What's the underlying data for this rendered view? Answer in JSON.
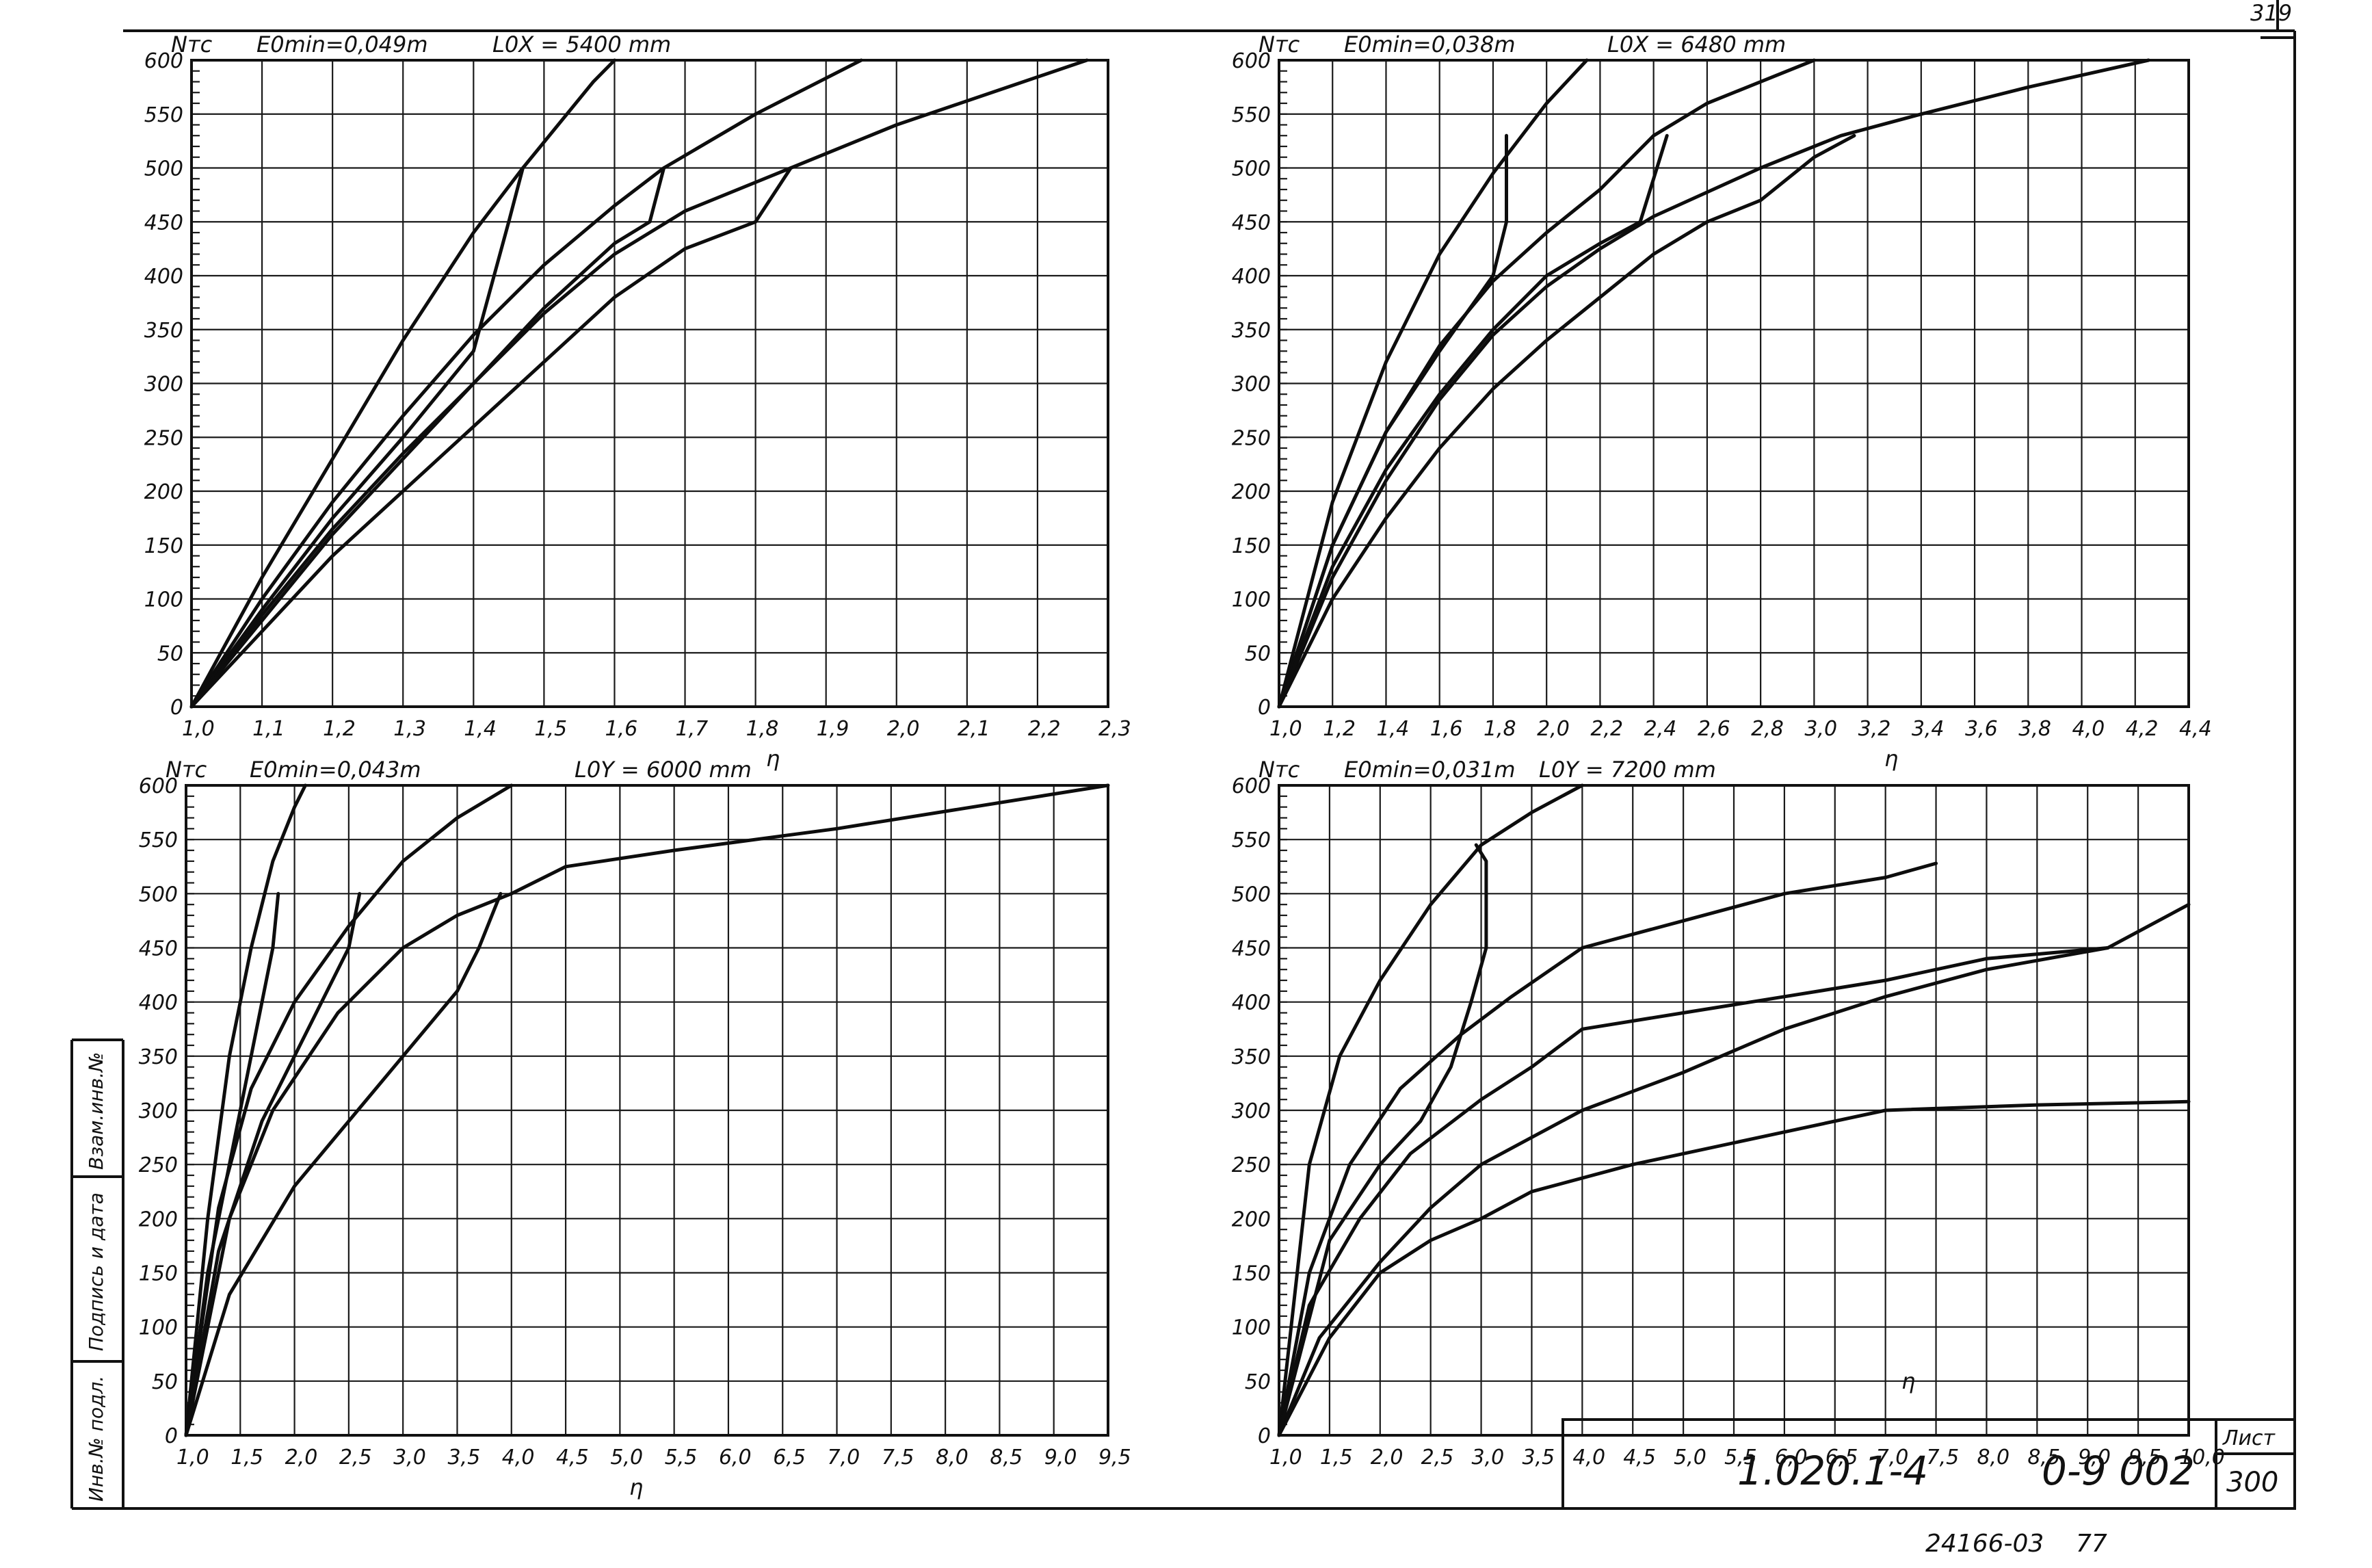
{
  "sheet": {
    "designation": "1.020.1-4",
    "code": "0-9 002",
    "list_label": "Лист",
    "list_number": "300",
    "corner_number": "319",
    "footer_number": "24166-03",
    "footer_extra": "77",
    "side_stamp": {
      "inv_podl": "Инв.№ подл.",
      "podpis_data": "Подпись и дата",
      "vzam_inv": "Взам.инв.№"
    }
  },
  "chart_data": [
    {
      "type": "line",
      "ylabel": "Nтс",
      "xlabel": "η",
      "e0min": "E0min=0,049m",
      "l0": "L0X = 5400 mm",
      "xlim": [
        1.0,
        2.3
      ],
      "ylim": [
        0,
        600
      ],
      "x_ticks": [
        "1,0",
        "1,1",
        "1,2",
        "1,3",
        "1,4",
        "1,5",
        "1,6",
        "1,7",
        "1,8",
        "1,9",
        "2,0",
        "2,1",
        "2,2",
        "2,3"
      ],
      "y_ticks": [
        "0",
        "50",
        "100",
        "150",
        "200",
        "250",
        "300",
        "350",
        "400",
        "450",
        "500",
        "550",
        "600"
      ],
      "series": [
        {
          "points": [
            [
              1.0,
              0
            ],
            [
              1.05,
              60
            ],
            [
              1.1,
              120
            ],
            [
              1.2,
              230
            ],
            [
              1.3,
              340
            ],
            [
              1.4,
              440
            ],
            [
              1.47,
              500
            ],
            [
              1.57,
              580
            ],
            [
              1.6,
              600
            ]
          ]
        },
        {
          "points": [
            [
              1.0,
              0
            ],
            [
              1.1,
              100
            ],
            [
              1.2,
              190
            ],
            [
              1.3,
              270
            ],
            [
              1.4,
              345
            ],
            [
              1.5,
              410
            ],
            [
              1.6,
              465
            ],
            [
              1.67,
              500
            ],
            [
              1.8,
              550
            ],
            [
              1.95,
              600
            ]
          ]
        },
        {
          "points": [
            [
              1.0,
              0
            ],
            [
              1.1,
              85
            ],
            [
              1.2,
              165
            ],
            [
              1.3,
              235
            ],
            [
              1.4,
              300
            ],
            [
              1.5,
              365
            ],
            [
              1.6,
              420
            ],
            [
              1.7,
              460
            ],
            [
              1.85,
              500
            ],
            [
              2.0,
              540
            ],
            [
              2.27,
              600
            ]
          ]
        },
        {
          "points": [
            [
              1.0,
              0
            ],
            [
              1.1,
              70
            ],
            [
              1.2,
              140
            ],
            [
              1.3,
              200
            ],
            [
              1.4,
              260
            ],
            [
              1.5,
              320
            ],
            [
              1.6,
              380
            ],
            [
              1.7,
              425
            ],
            [
              1.8,
              450
            ],
            [
              1.85,
              500
            ]
          ]
        },
        {
          "points": [
            [
              1.0,
              0
            ],
            [
              1.1,
              90
            ],
            [
              1.2,
              175
            ],
            [
              1.3,
              250
            ],
            [
              1.4,
              330
            ],
            [
              1.45,
              450
            ],
            [
              1.47,
              500
            ]
          ]
        },
        {
          "points": [
            [
              1.0,
              0
            ],
            [
              1.1,
              80
            ],
            [
              1.2,
              160
            ],
            [
              1.3,
              230
            ],
            [
              1.4,
              300
            ],
            [
              1.5,
              370
            ],
            [
              1.6,
              430
            ],
            [
              1.65,
              450
            ],
            [
              1.67,
              500
            ]
          ]
        }
      ]
    },
    {
      "type": "line",
      "ylabel": "Nтс",
      "xlabel": "η",
      "e0min": "E0min=0,038m",
      "l0": "L0X = 6480 mm",
      "xlim": [
        1.0,
        4.4
      ],
      "ylim": [
        0,
        600
      ],
      "x_ticks": [
        "1,0",
        "1,2",
        "1,4",
        "1,6",
        "1,8",
        "2,0",
        "2,2",
        "2,4",
        "2,6",
        "2,8",
        "3,0",
        "3,2",
        "3,4",
        "3,6",
        "3,8",
        "4,0",
        "4,2",
        "4,4"
      ],
      "y_ticks": [
        "0",
        "50",
        "100",
        "150",
        "200",
        "250",
        "300",
        "350",
        "400",
        "450",
        "500",
        "550",
        "600"
      ],
      "series": [
        {
          "points": [
            [
              1.0,
              0
            ],
            [
              1.2,
              190
            ],
            [
              1.4,
              320
            ],
            [
              1.6,
              420
            ],
            [
              1.8,
              495
            ],
            [
              2.0,
              560
            ],
            [
              2.15,
              600
            ]
          ]
        },
        {
          "points": [
            [
              1.0,
              0
            ],
            [
              1.2,
              150
            ],
            [
              1.4,
              255
            ],
            [
              1.6,
              335
            ],
            [
              1.8,
              395
            ],
            [
              2.0,
              440
            ],
            [
              2.2,
              480
            ],
            [
              2.4,
              530
            ],
            [
              2.6,
              560
            ],
            [
              3.0,
              600
            ]
          ]
        },
        {
          "points": [
            [
              1.0,
              0
            ],
            [
              1.2,
              120
            ],
            [
              1.4,
              210
            ],
            [
              1.6,
              285
            ],
            [
              1.8,
              345
            ],
            [
              2.0,
              390
            ],
            [
              2.2,
              425
            ],
            [
              2.4,
              455
            ],
            [
              2.8,
              500
            ],
            [
              3.1,
              530
            ],
            [
              3.4,
              550
            ],
            [
              3.8,
              575
            ],
            [
              4.25,
              600
            ]
          ]
        },
        {
          "points": [
            [
              1.0,
              0
            ],
            [
              1.2,
              100
            ],
            [
              1.4,
              175
            ],
            [
              1.6,
              240
            ],
            [
              1.8,
              295
            ],
            [
              2.0,
              340
            ],
            [
              2.2,
              380
            ],
            [
              2.4,
              420
            ],
            [
              2.6,
              450
            ],
            [
              2.8,
              470
            ],
            [
              3.0,
              510
            ],
            [
              3.15,
              530
            ]
          ]
        },
        {
          "points": [
            [
              1.0,
              0
            ],
            [
              1.2,
              150
            ],
            [
              1.4,
              255
            ],
            [
              1.6,
              330
            ],
            [
              1.8,
              400
            ],
            [
              1.85,
              450
            ],
            [
              1.85,
              530
            ]
          ]
        },
        {
          "points": [
            [
              1.0,
              0
            ],
            [
              1.2,
              130
            ],
            [
              1.4,
              220
            ],
            [
              1.6,
              290
            ],
            [
              1.8,
              350
            ],
            [
              2.0,
              400
            ],
            [
              2.2,
              430
            ],
            [
              2.35,
              450
            ],
            [
              2.45,
              530
            ]
          ]
        }
      ]
    },
    {
      "type": "line",
      "ylabel": "Nтс",
      "xlabel": "η",
      "e0min": "E0min=0,043m",
      "l0": "L0Y = 6000 mm",
      "xlim": [
        1.0,
        9.5
      ],
      "ylim": [
        0,
        600
      ],
      "x_ticks": [
        "1,0",
        "1,5",
        "2,0",
        "2,5",
        "3,0",
        "3,5",
        "4,0",
        "4,5",
        "5,0",
        "5,5",
        "6,0",
        "6,5",
        "7,0",
        "7,5",
        "8,0",
        "8,5",
        "9,0",
        "9,5"
      ],
      "y_ticks": [
        "0",
        "50",
        "100",
        "150",
        "200",
        "250",
        "300",
        "350",
        "400",
        "450",
        "500",
        "550",
        "600"
      ],
      "series": [
        {
          "points": [
            [
              1.0,
              0
            ],
            [
              1.2,
              200
            ],
            [
              1.4,
              350
            ],
            [
              1.6,
              450
            ],
            [
              1.8,
              530
            ],
            [
              2.0,
              580
            ],
            [
              2.1,
              600
            ]
          ]
        },
        {
          "points": [
            [
              1.0,
              0
            ],
            [
              1.3,
              210
            ],
            [
              1.6,
              320
            ],
            [
              2.0,
              400
            ],
            [
              2.5,
              470
            ],
            [
              3.0,
              530
            ],
            [
              3.5,
              570
            ],
            [
              4.0,
              600
            ]
          ]
        },
        {
          "points": [
            [
              1.0,
              0
            ],
            [
              1.4,
              200
            ],
            [
              1.8,
              300
            ],
            [
              2.4,
              390
            ],
            [
              3.0,
              450
            ],
            [
              3.5,
              480
            ],
            [
              4.0,
              500
            ],
            [
              4.5,
              525
            ],
            [
              5.5,
              540
            ],
            [
              7.0,
              560
            ],
            [
              9.5,
              600
            ]
          ]
        },
        {
          "points": [
            [
              1.0,
              0
            ],
            [
              1.4,
              130
            ],
            [
              2.0,
              230
            ],
            [
              2.5,
              290
            ],
            [
              3.0,
              350
            ],
            [
              3.5,
              410
            ],
            [
              3.7,
              450
            ],
            [
              3.9,
              500
            ]
          ]
        },
        {
          "points": [
            [
              1.0,
              0
            ],
            [
              1.2,
              150
            ],
            [
              1.5,
              300
            ],
            [
              1.8,
              450
            ],
            [
              1.85,
              500
            ]
          ]
        },
        {
          "points": [
            [
              1.0,
              0
            ],
            [
              1.3,
              170
            ],
            [
              1.7,
              290
            ],
            [
              2.1,
              370
            ],
            [
              2.5,
              450
            ],
            [
              2.6,
              500
            ]
          ]
        }
      ]
    },
    {
      "type": "line",
      "ylabel": "Nтс",
      "xlabel": "η",
      "e0min": "E0min=0,031m",
      "l0": "L0Y = 7200 mm",
      "xlim": [
        1.0,
        10.0
      ],
      "ylim": [
        0,
        600
      ],
      "x_ticks": [
        "1,0",
        "1,5",
        "2,0",
        "2,5",
        "3,0",
        "3,5",
        "4,0",
        "4,5",
        "5,0",
        "5,5",
        "6,0",
        "6,5",
        "7,0",
        "7,5",
        "8,0",
        "8,5",
        "9,0",
        "9,5",
        "10,0"
      ],
      "y_ticks": [
        "0",
        "50",
        "100",
        "150",
        "200",
        "250",
        "300",
        "350",
        "400",
        "450",
        "500",
        "550",
        "600"
      ],
      "series": [
        {
          "points": [
            [
              1.0,
              0
            ],
            [
              1.3,
              250
            ],
            [
              1.6,
              350
            ],
            [
              2.0,
              420
            ],
            [
              2.5,
              490
            ],
            [
              3.0,
              545
            ],
            [
              3.5,
              575
            ],
            [
              4.0,
              600
            ]
          ]
        },
        {
          "points": [
            [
              1.0,
              0
            ],
            [
              1.3,
              150
            ],
            [
              1.7,
              250
            ],
            [
              2.2,
              320
            ],
            [
              2.8,
              370
            ],
            [
              3.3,
              405
            ],
            [
              4.0,
              450
            ],
            [
              5.0,
              475
            ],
            [
              6.0,
              500
            ],
            [
              7.0,
              515
            ],
            [
              7.5,
              528
            ]
          ]
        },
        {
          "points": [
            [
              1.0,
              0
            ],
            [
              1.3,
              120
            ],
            [
              1.8,
              200
            ],
            [
              2.3,
              260
            ],
            [
              3.0,
              310
            ],
            [
              3.5,
              340
            ],
            [
              4.0,
              375
            ],
            [
              5.0,
              390
            ],
            [
              6.0,
              405
            ],
            [
              7.0,
              420
            ],
            [
              8.0,
              440
            ],
            [
              9.2,
              450
            ],
            [
              10.0,
              490
            ]
          ]
        },
        {
          "points": [
            [
              1.0,
              0
            ],
            [
              1.4,
              90
            ],
            [
              2.0,
              160
            ],
            [
              2.5,
              210
            ],
            [
              3.0,
              250
            ],
            [
              3.5,
              275
            ],
            [
              4.0,
              300
            ],
            [
              5.0,
              335
            ],
            [
              6.0,
              375
            ],
            [
              7.0,
              405
            ],
            [
              8.0,
              430
            ],
            [
              9.2,
              450
            ]
          ]
        },
        {
          "points": [
            [
              1.0,
              0
            ],
            [
              1.5,
              90
            ],
            [
              2.0,
              150
            ],
            [
              2.5,
              180
            ],
            [
              3.0,
              200
            ],
            [
              3.5,
              225
            ],
            [
              4.5,
              250
            ],
            [
              6.0,
              280
            ],
            [
              7.0,
              300
            ],
            [
              8.5,
              305
            ],
            [
              10.0,
              308
            ]
          ]
        },
        {
          "points": [
            [
              1.0,
              0
            ],
            [
              1.5,
              180
            ],
            [
              2.0,
              250
            ],
            [
              2.4,
              290
            ],
            [
              2.7,
              340
            ],
            [
              2.9,
              400
            ],
            [
              3.05,
              450
            ],
            [
              3.05,
              530
            ],
            [
              2.95,
              545
            ]
          ]
        }
      ]
    }
  ]
}
